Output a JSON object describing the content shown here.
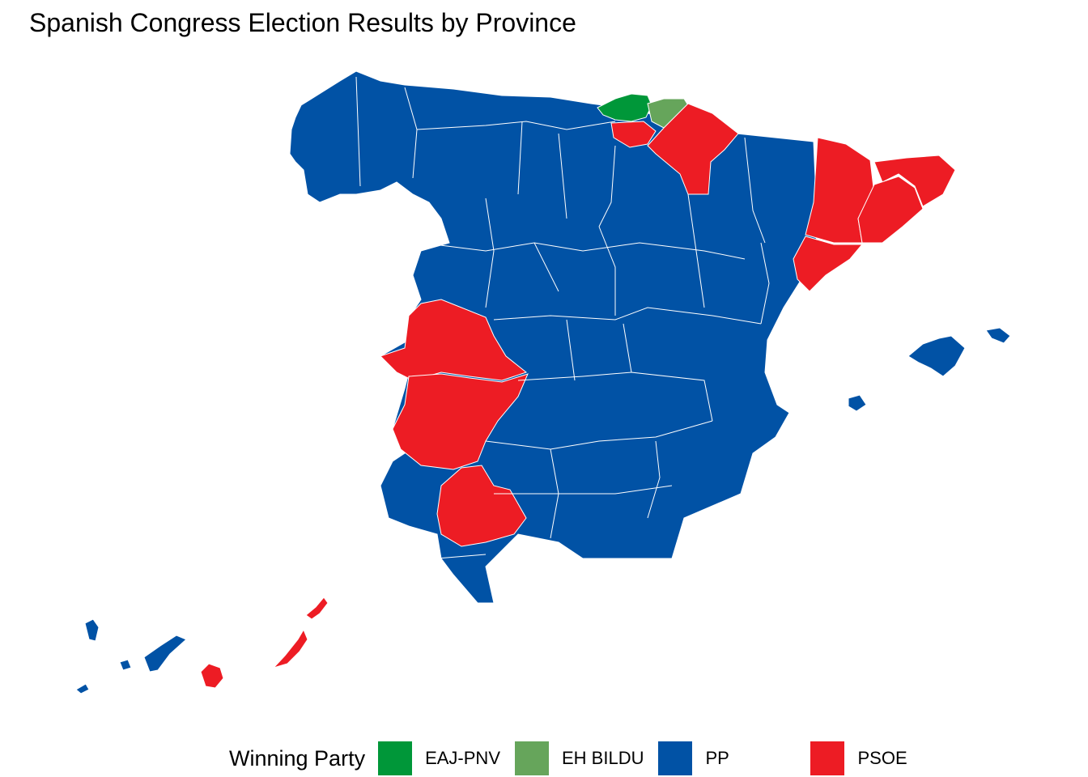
{
  "title": "Spanish Congress Election Results by Province",
  "legend": {
    "title": "Winning Party",
    "items": [
      {
        "label": "EAJ-PNV",
        "color": "#009739"
      },
      {
        "label": "EH BILDU",
        "color": "#66A55B"
      },
      {
        "label": "PP",
        "color": "#0152A5"
      },
      {
        "label": "PSOE",
        "color": "#ED1C24"
      }
    ]
  },
  "colors": {
    "EAJ-PNV": "#009739",
    "EH BILDU": "#66A55B",
    "PP": "#0152A5",
    "PSOE": "#ED1C24",
    "border": "#ffffff"
  }
}
